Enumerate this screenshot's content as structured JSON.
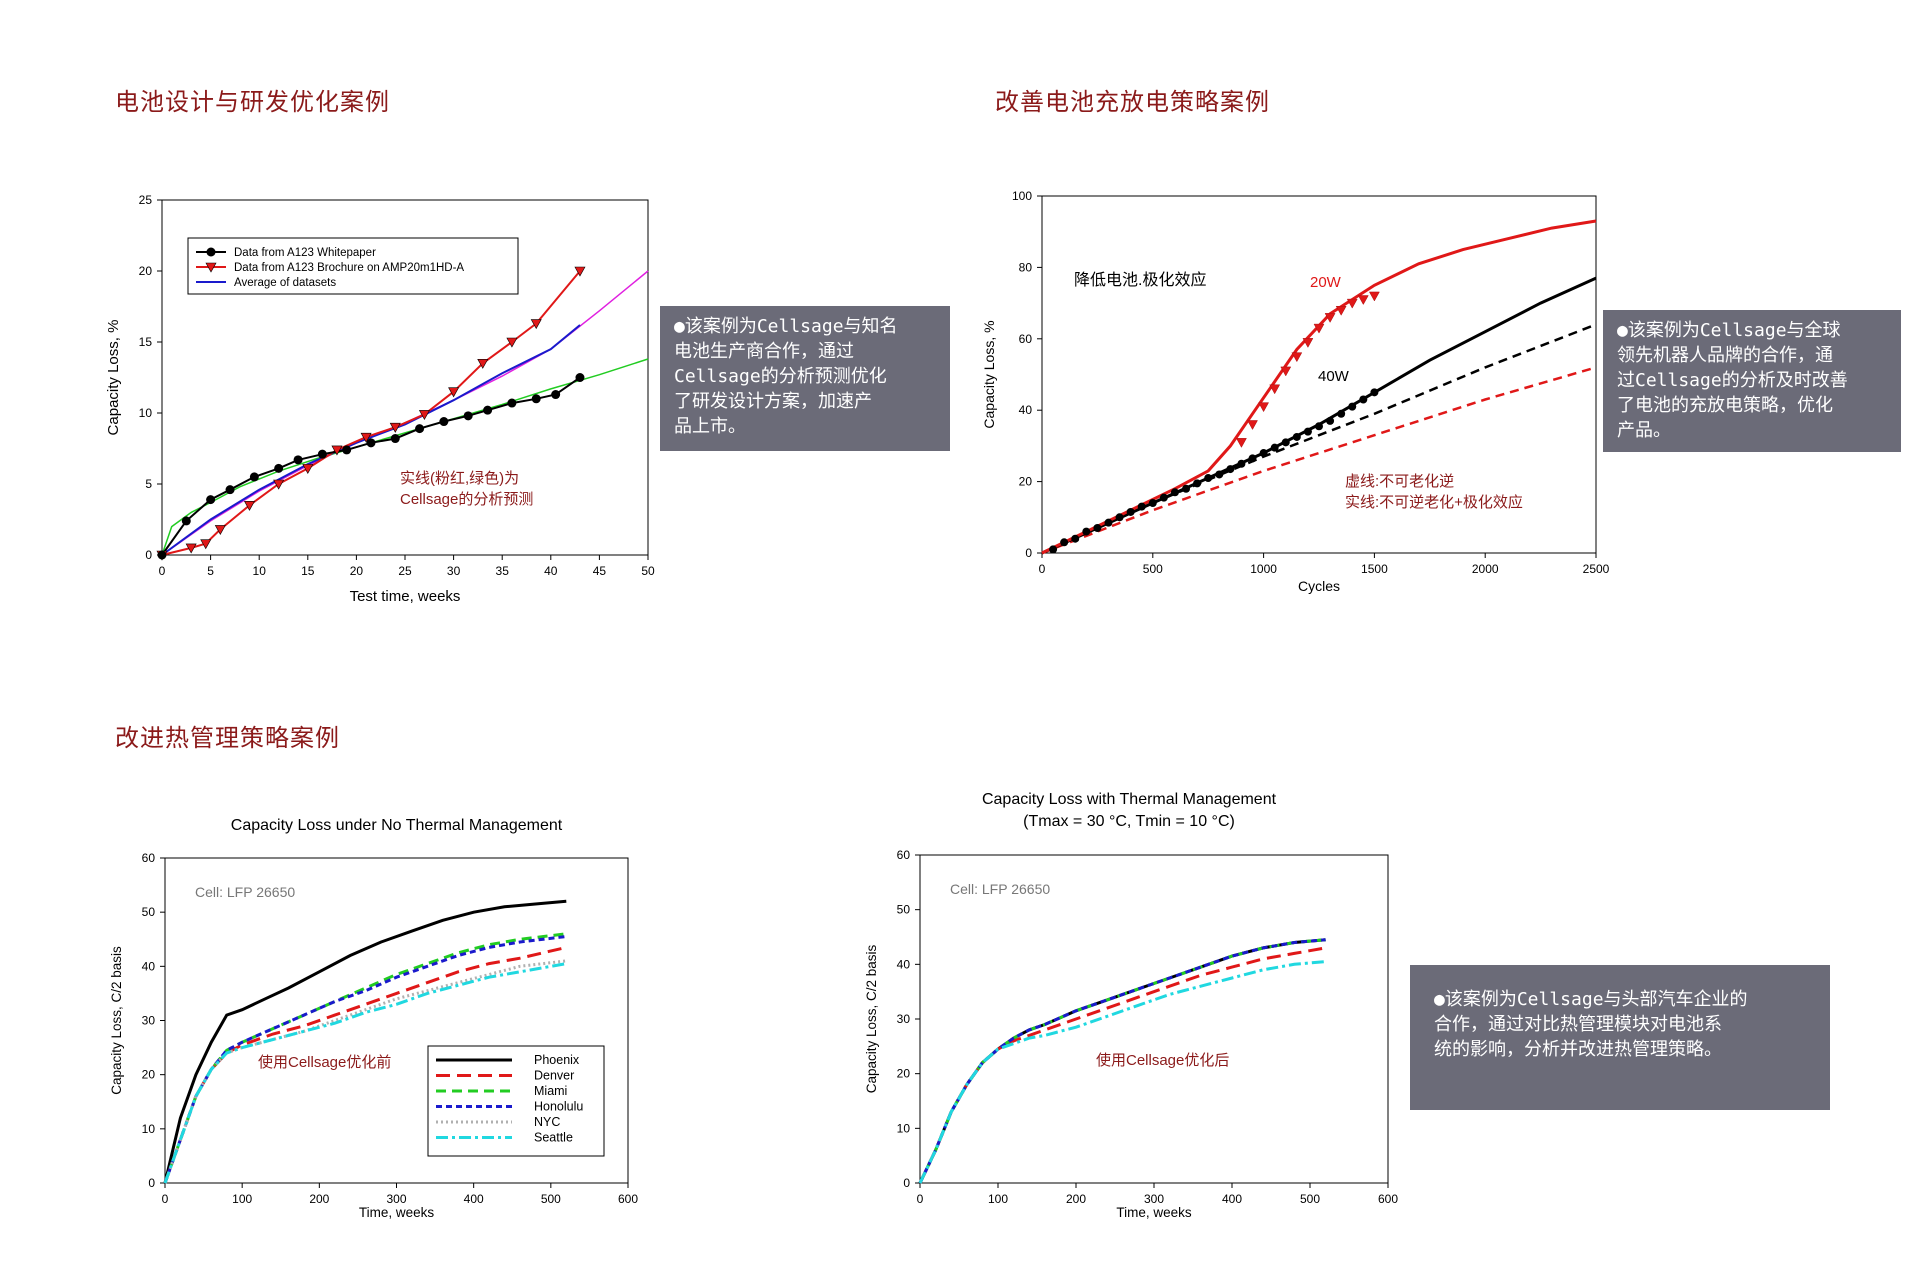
{
  "sections": {
    "s1_title": "电池设计与研发优化案例",
    "s2_title": "改善电池充放电策略案例",
    "s3_title": "改进热管理策略案例"
  },
  "notes": {
    "n1": "●该案例为Cellsage与知名\n电池生产商合作，通过\nCellsage的分析预测优化\n了研发设计方案，加速产\n品上市。",
    "n2": "●该案例为Cellsage与全球\n领先机器人品牌的合作，通\n过Cellsage的分析及时改善\n了电池的充放电策略，优化\n产品。",
    "n3": "●该案例为Cellsage与头部汽车企业的\n合作，通过对比热管理模块对电池系\n统的影响，分析并改进热管理策略。"
  },
  "colors": {
    "title_red": "#8b1a1a",
    "note_bg": "#6b6b78",
    "black": "#000000",
    "red": "#e01818",
    "green": "#22cc22",
    "blue": "#1a1acc",
    "magenta": "#e020e0",
    "cyan": "#20d8e0",
    "gray": "#b0b0b0"
  },
  "chart_data": [
    {
      "id": "c1",
      "type": "line",
      "xlabel": "Test time, weeks",
      "ylabel": "Capacity Loss, %",
      "xlim": [
        0,
        50
      ],
      "ylim": [
        0,
        25
      ],
      "xticks": [
        0,
        5,
        10,
        15,
        20,
        25,
        30,
        35,
        40,
        45,
        50
      ],
      "yticks": [
        0,
        5,
        10,
        15,
        20,
        25
      ],
      "annotation": "实线(粉红,绿色)为\nCellsage的分析预测",
      "legend": [
        "Data from A123 Whitepaper",
        "Data from A123 Brochure on AMP20m1HD-A",
        "Average of datasets"
      ],
      "series": [
        {
          "name": "Data from A123 Whitepaper",
          "color": "#000000",
          "marker": "circle",
          "x": [
            0,
            2.5,
            5,
            7,
            9.5,
            12,
            14,
            16.5,
            19,
            21.5,
            24,
            26.5,
            29,
            31.5,
            33.5,
            36,
            38.5,
            40.5,
            43
          ],
          "y": [
            0,
            2.4,
            3.9,
            4.6,
            5.5,
            6.1,
            6.7,
            7.1,
            7.4,
            7.9,
            8.2,
            8.9,
            9.4,
            9.8,
            10.2,
            10.7,
            11.0,
            11.3,
            12.5
          ]
        },
        {
          "name": "Data from A123 Brochure on AMP20m1HD-A",
          "color": "#e01818",
          "marker": "triangle",
          "x": [
            0,
            3,
            4.5,
            6,
            9,
            12,
            15,
            18,
            21,
            24,
            27,
            30,
            33,
            36,
            38.5,
            43
          ],
          "y": [
            0,
            0.5,
            0.8,
            1.8,
            3.5,
            5.0,
            6.1,
            7.4,
            8.3,
            9.0,
            9.9,
            11.5,
            13.5,
            15.0,
            16.3,
            20.0
          ]
        },
        {
          "name": "Average of datasets",
          "color": "#1a1acc",
          "x": [
            0,
            5,
            10,
            15,
            20,
            25,
            30,
            35,
            40,
            43
          ],
          "y": [
            0,
            2.5,
            4.6,
            6.4,
            7.9,
            9.2,
            10.9,
            12.8,
            14.5,
            16.2
          ]
        },
        {
          "color": "#e020e0",
          "x": [
            0,
            5,
            10,
            15,
            20,
            25,
            30,
            35,
            40,
            45,
            50
          ],
          "y": [
            0,
            2.4,
            4.5,
            6.3,
            7.9,
            9.3,
            10.9,
            12.6,
            14.5,
            17.2,
            20.0
          ]
        },
        {
          "color": "#22cc22",
          "x": [
            0,
            1,
            3,
            5,
            8,
            12,
            16,
            20,
            25,
            30,
            35,
            40,
            45,
            50
          ],
          "y": [
            0,
            2.0,
            3.0,
            3.7,
            4.8,
            5.9,
            6.8,
            7.6,
            8.6,
            9.6,
            10.6,
            11.7,
            12.7,
            13.8
          ]
        }
      ]
    },
    {
      "id": "c2",
      "type": "line",
      "xlabel": "Cycles",
      "ylabel": "Capacity Loss, %",
      "xlim": [
        0,
        2500
      ],
      "ylim": [
        0,
        100
      ],
      "xticks": [
        0,
        500,
        1000,
        1500,
        2000,
        2500
      ],
      "yticks": [
        0,
        20,
        40,
        60,
        80,
        100
      ],
      "label_top": "降低电池.极化效应",
      "label_20w": "20W",
      "label_40w": "40W",
      "legend_text": "虚线:不可老化逆\n实线:不可逆老化+极化效应",
      "series": [
        {
          "color": "#e01818",
          "style": "solid",
          "x": [
            0,
            200,
            400,
            600,
            750,
            850,
            950,
            1050,
            1150,
            1300,
            1500,
            1700,
            1900,
            2100,
            2300,
            2500
          ],
          "y": [
            0,
            6,
            12,
            18,
            23,
            30,
            39,
            48,
            57,
            67,
            75,
            81,
            85,
            88,
            91,
            93
          ]
        },
        {
          "color": "#000000",
          "style": "solid",
          "x": [
            0,
            250,
            500,
            750,
            1000,
            1250,
            1500,
            1750,
            2000,
            2250,
            2500
          ],
          "y": [
            0,
            7,
            14,
            21,
            28,
            36,
            45,
            54,
            62,
            70,
            77
          ]
        },
        {
          "color": "#000000",
          "style": "dashed",
          "x": [
            0,
            500,
            1000,
            1500,
            2000,
            2500
          ],
          "y": [
            0,
            14,
            27,
            39,
            52,
            64
          ]
        },
        {
          "color": "#e01818",
          "style": "dashed",
          "x": [
            0,
            500,
            1000,
            1500,
            2000,
            2500
          ],
          "y": [
            0,
            12,
            23,
            33,
            43,
            52
          ]
        },
        {
          "color": "#000000",
          "style": "circles",
          "x": [
            50,
            100,
            150,
            200,
            250,
            300,
            350,
            400,
            450,
            500,
            550,
            600,
            650,
            700,
            750,
            800,
            850,
            900,
            950,
            1000,
            1050,
            1100,
            1150,
            1200,
            1250,
            1300,
            1350,
            1400,
            1450,
            1500
          ],
          "y": [
            1,
            3,
            4,
            6,
            7,
            8.5,
            10,
            11.5,
            13,
            14,
            15.5,
            17,
            18,
            19.5,
            21,
            22,
            23.5,
            25,
            26.5,
            28,
            29.5,
            31,
            32.5,
            34,
            35.5,
            37,
            39,
            41,
            43,
            45
          ]
        },
        {
          "color": "#e01818",
          "style": "triangles",
          "x": [
            900,
            950,
            1000,
            1050,
            1100,
            1150,
            1200,
            1250,
            1300,
            1350,
            1400,
            1450,
            1500
          ],
          "y": [
            31,
            36,
            41,
            46,
            51,
            55,
            59,
            63,
            66,
            68,
            70,
            71,
            72
          ]
        }
      ]
    },
    {
      "id": "c3",
      "type": "line",
      "title": "Capacity Loss under No Thermal Management",
      "xlabel": "Time, weeks",
      "ylabel": "Capacity Loss, C/2 basis",
      "cell_label": "Cell: LFP 26650",
      "annotation": "使用Cellsage优化前",
      "xlim": [
        0,
        600
      ],
      "ylim": [
        0,
        60
      ],
      "xticks": [
        0,
        100,
        200,
        300,
        400,
        500,
        600
      ],
      "yticks": [
        0,
        10,
        20,
        30,
        40,
        50,
        60
      ],
      "series": [
        {
          "name": "Phoenix",
          "color": "#000000",
          "dash": "",
          "x": [
            0,
            20,
            40,
            60,
            80,
            100,
            130,
            160,
            200,
            240,
            280,
            320,
            360,
            400,
            440,
            480,
            520
          ],
          "y": [
            0,
            12,
            20,
            26,
            31,
            32,
            34,
            36,
            39,
            42,
            44.5,
            46.5,
            48.5,
            50,
            51,
            51.5,
            52
          ]
        },
        {
          "name": "Denver",
          "color": "#e01818",
          "dash": "14,7",
          "x": [
            0,
            20,
            40,
            60,
            80,
            100,
            140,
            180,
            220,
            260,
            300,
            340,
            380,
            420,
            460,
            520
          ],
          "y": [
            0,
            8,
            16,
            21,
            24,
            25.5,
            27.5,
            29,
            31,
            33,
            35,
            37,
            39,
            40.5,
            41.5,
            43.5
          ]
        },
        {
          "name": "Miami",
          "color": "#22cc22",
          "dash": "10,6",
          "x": [
            0,
            20,
            40,
            60,
            80,
            100,
            140,
            180,
            220,
            260,
            300,
            340,
            380,
            420,
            460,
            520
          ],
          "y": [
            0,
            8,
            16,
            21,
            24.5,
            26,
            28.5,
            31,
            33.5,
            36,
            38.5,
            40.5,
            42.5,
            44,
            45,
            46
          ]
        },
        {
          "name": "Honolulu",
          "color": "#1a1acc",
          "dash": "6,4",
          "x": [
            0,
            20,
            40,
            60,
            80,
            100,
            140,
            180,
            220,
            260,
            300,
            340,
            380,
            420,
            460,
            520
          ],
          "y": [
            0,
            8,
            16,
            21,
            24.5,
            26,
            28.5,
            31,
            33.5,
            35.5,
            38,
            40,
            42,
            43.5,
            44.5,
            45.5
          ]
        },
        {
          "name": "NYC",
          "color": "#b0b0b0",
          "dash": "2,3",
          "x": [
            0,
            20,
            40,
            60,
            80,
            100,
            140,
            180,
            220,
            260,
            300,
            340,
            380,
            420,
            460,
            520
          ],
          "y": [
            0,
            8,
            16,
            21,
            24,
            25,
            26.5,
            28,
            30,
            32,
            34,
            35.5,
            37,
            38.5,
            40,
            41
          ]
        },
        {
          "name": "Seattle",
          "color": "#20d8e0",
          "dash": "12,4,3,4",
          "x": [
            0,
            20,
            40,
            60,
            80,
            100,
            140,
            180,
            220,
            260,
            300,
            340,
            380,
            420,
            460,
            520
          ],
          "y": [
            0,
            8,
            16,
            21,
            24,
            25,
            26.5,
            28,
            29.5,
            31.5,
            33,
            35,
            36.5,
            38,
            39,
            40.5
          ]
        }
      ]
    },
    {
      "id": "c4",
      "type": "line",
      "title": "Capacity Loss with Thermal Management",
      "subtitle": "(Tmax = 30 °C, Tmin = 10 °C)",
      "xlabel": "Time, weeks",
      "ylabel": "Capacity Loss, C/2 basis",
      "cell_label": "Cell: LFP 26650",
      "annotation": "使用Cellsage优化后",
      "xlim": [
        0,
        600
      ],
      "ylim": [
        0,
        60
      ],
      "xticks": [
        0,
        100,
        200,
        300,
        400,
        500,
        600
      ],
      "yticks": [
        0,
        10,
        20,
        30,
        40,
        50,
        60
      ],
      "series": [
        {
          "color": "#000000",
          "dash": "",
          "x": [
            0,
            20,
            40,
            60,
            80,
            100,
            120,
            140,
            160,
            200,
            240,
            280,
            320,
            360,
            400,
            440,
            480,
            520
          ],
          "y": [
            0,
            6,
            13,
            18,
            22,
            24.5,
            26.5,
            28,
            29,
            31.5,
            33.5,
            35.5,
            37.5,
            39.5,
            41.5,
            43,
            44,
            44.5
          ]
        },
        {
          "color": "#e01818",
          "dash": "14,7",
          "x": [
            0,
            20,
            40,
            60,
            80,
            100,
            120,
            140,
            160,
            200,
            240,
            280,
            320,
            360,
            400,
            440,
            480,
            520
          ],
          "y": [
            0,
            6,
            13,
            18,
            22,
            24.5,
            26,
            27,
            28,
            30,
            32,
            34,
            36,
            38,
            39.5,
            41,
            42,
            43
          ]
        },
        {
          "color": "#22cc22",
          "dash": "10,6",
          "x": [
            0,
            20,
            40,
            60,
            80,
            100,
            120,
            140,
            160,
            200,
            240,
            280,
            320,
            360,
            400,
            440,
            480,
            520
          ],
          "y": [
            0,
            6,
            13,
            18,
            22,
            24.5,
            26.5,
            28,
            29,
            31.5,
            33.5,
            35.5,
            37.5,
            39.5,
            41.5,
            43,
            44,
            44.5
          ]
        },
        {
          "color": "#1a1acc",
          "dash": "6,4",
          "x": [
            0,
            20,
            40,
            60,
            80,
            100,
            120,
            140,
            160,
            200,
            240,
            280,
            320,
            360,
            400,
            440,
            480,
            520
          ],
          "y": [
            0,
            6,
            13,
            18,
            22,
            24.5,
            26.5,
            28,
            29,
            31.5,
            33.5,
            35.5,
            37.5,
            39.5,
            41.5,
            43,
            44,
            44.5
          ]
        },
        {
          "color": "#20d8e0",
          "dash": "12,4,3,4",
          "x": [
            0,
            20,
            40,
            60,
            80,
            100,
            120,
            140,
            160,
            200,
            240,
            280,
            320,
            360,
            400,
            440,
            480,
            520
          ],
          "y": [
            0,
            6,
            13,
            18,
            22,
            24.5,
            25.5,
            26.5,
            27,
            28.5,
            30.5,
            32.5,
            34.5,
            36,
            37.5,
            39,
            40,
            40.5
          ]
        }
      ]
    }
  ]
}
